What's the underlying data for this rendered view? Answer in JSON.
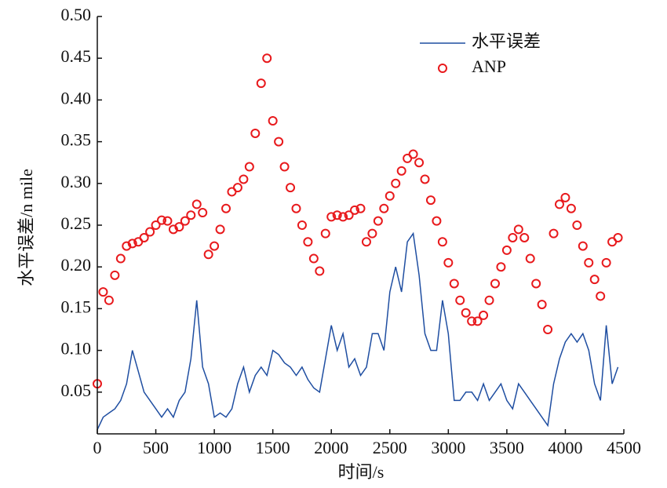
{
  "chart_data": {
    "type": "line",
    "xlabel": "时间/s",
    "ylabel": "水平误差/n mile",
    "x": [
      0,
      50,
      100,
      150,
      200,
      250,
      300,
      350,
      400,
      450,
      500,
      550,
      600,
      650,
      700,
      750,
      800,
      850,
      900,
      950,
      1000,
      1050,
      1100,
      1150,
      1200,
      1250,
      1300,
      1350,
      1400,
      1450,
      1500,
      1550,
      1600,
      1650,
      1700,
      1750,
      1800,
      1850,
      1900,
      1950,
      2000,
      2050,
      2100,
      2150,
      2200,
      2250,
      2300,
      2350,
      2400,
      2450,
      2500,
      2550,
      2600,
      2650,
      2700,
      2750,
      2800,
      2850,
      2900,
      2950,
      3000,
      3050,
      3100,
      3150,
      3200,
      3250,
      3300,
      3350,
      3400,
      3450,
      3500,
      3550,
      3600,
      3650,
      3700,
      3750,
      3800,
      3850,
      3900,
      3950,
      4000,
      4050,
      4100,
      4150,
      4200,
      4250,
      4300,
      4350,
      4400,
      4450
    ],
    "series": [
      {
        "name": "水平误差",
        "color": "#1f4ea1",
        "mode": "line",
        "values": [
          0.005,
          0.02,
          0.025,
          0.03,
          0.04,
          0.06,
          0.1,
          0.075,
          0.05,
          0.04,
          0.03,
          0.02,
          0.03,
          0.02,
          0.04,
          0.05,
          0.09,
          0.16,
          0.08,
          0.06,
          0.02,
          0.025,
          0.02,
          0.03,
          0.06,
          0.08,
          0.05,
          0.07,
          0.08,
          0.07,
          0.1,
          0.095,
          0.085,
          0.08,
          0.07,
          0.08,
          0.065,
          0.055,
          0.05,
          0.09,
          0.13,
          0.1,
          0.12,
          0.08,
          0.09,
          0.07,
          0.08,
          0.12,
          0.12,
          0.1,
          0.17,
          0.2,
          0.17,
          0.23,
          0.24,
          0.19,
          0.12,
          0.1,
          0.1,
          0.16,
          0.12,
          0.04,
          0.04,
          0.05,
          0.05,
          0.04,
          0.06,
          0.04,
          0.05,
          0.06,
          0.04,
          0.03,
          0.06,
          0.05,
          0.04,
          0.03,
          0.02,
          0.01,
          0.06,
          0.09,
          0.11,
          0.12,
          0.11,
          0.12,
          0.1,
          0.06,
          0.04,
          0.13,
          0.06,
          0.08
        ]
      },
      {
        "name": "ANP",
        "color": "#e8191c",
        "mode": "markers",
        "values": [
          0.06,
          0.17,
          0.16,
          0.19,
          0.21,
          0.225,
          0.228,
          0.23,
          0.235,
          0.242,
          0.25,
          0.256,
          0.255,
          0.245,
          0.248,
          0.255,
          0.262,
          0.275,
          0.265,
          0.215,
          0.225,
          0.245,
          0.27,
          0.29,
          0.295,
          0.305,
          0.32,
          0.36,
          0.42,
          0.45,
          0.375,
          0.35,
          0.32,
          0.295,
          0.27,
          0.25,
          0.23,
          0.21,
          0.195,
          0.24,
          0.26,
          0.262,
          0.26,
          0.262,
          0.268,
          0.27,
          0.23,
          0.24,
          0.255,
          0.27,
          0.285,
          0.3,
          0.315,
          0.33,
          0.335,
          0.325,
          0.305,
          0.28,
          0.255,
          0.23,
          0.205,
          0.18,
          0.16,
          0.145,
          0.135,
          0.135,
          0.142,
          0.16,
          0.18,
          0.2,
          0.22,
          0.235,
          0.245,
          0.235,
          0.21,
          0.18,
          0.155,
          0.125,
          0.24,
          0.275,
          0.283,
          0.27,
          0.25,
          0.225,
          0.205,
          0.185,
          0.165,
          0.205,
          0.23,
          0.235
        ]
      }
    ],
    "xlim": [
      0,
      4500
    ],
    "xticks": [
      0,
      500,
      1000,
      1500,
      2000,
      2500,
      3000,
      3500,
      4000,
      4500
    ],
    "ylim": [
      0,
      0.5
    ],
    "yticks": [
      0.05,
      {
        "value": 0.1,
        "label": "0.10"
      },
      0.15,
      {
        "value": 0.2,
        "label": "0.20"
      },
      0.25,
      {
        "value": 0.3,
        "label": "0.30"
      },
      0.35,
      {
        "value": 0.4,
        "label": "0.40"
      },
      0.45,
      {
        "value": 0.5,
        "label": "0.50"
      }
    ],
    "legend": "upper right",
    "grid": false
  }
}
